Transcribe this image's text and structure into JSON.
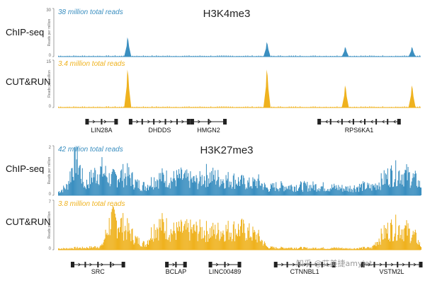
{
  "colors": {
    "chip": "#3b8fc0",
    "cutrun": "#efb21e",
    "axis": "#888888",
    "gene": "#222222"
  },
  "watermark": "知乎 @艾美捷amyjet",
  "chart_data": [
    {
      "type": "area",
      "title": "H3K4me3",
      "ylabel": "Reads per million",
      "tracks": [
        {
          "name": "ChIP-seq",
          "color": "#3b8fc0",
          "total_reads": "38 million total reads",
          "ylim": [
            0,
            30
          ],
          "ymax_label": "30",
          "ymin_label": "0",
          "x": [
            0,
            12,
            24,
            36,
            48,
            60,
            72,
            84,
            96,
            108,
            120,
            132,
            144,
            156,
            168,
            180,
            192,
            204,
            216,
            228,
            240,
            252,
            264,
            276,
            288,
            300,
            312,
            324,
            336,
            348,
            360,
            372,
            384,
            396,
            408,
            420,
            432,
            440,
            452,
            464,
            476,
            488,
            500
          ],
          "values": [
            0,
            1,
            1,
            1,
            1,
            1,
            1,
            1,
            12,
            1,
            1,
            1,
            1,
            1,
            1,
            1,
            1,
            1,
            1,
            1,
            1,
            1,
            1,
            1,
            9,
            1,
            1,
            1,
            1,
            1,
            1,
            1,
            1,
            6,
            1,
            1,
            1,
            1,
            1,
            1,
            1,
            6,
            1
          ]
        },
        {
          "name": "CUT&RUN",
          "color": "#efb21e",
          "total_reads": "3.4 million total reads",
          "ylim": [
            0,
            15
          ],
          "ymax_label": "15",
          "ymin_label": "0",
          "x": [
            0,
            12,
            24,
            36,
            48,
            60,
            72,
            84,
            96,
            108,
            120,
            132,
            144,
            156,
            168,
            180,
            192,
            204,
            216,
            228,
            240,
            252,
            264,
            276,
            288,
            300,
            312,
            324,
            336,
            348,
            360,
            372,
            384,
            396,
            408,
            420,
            432,
            440,
            452,
            464,
            476,
            488,
            500
          ],
          "values": [
            0,
            0,
            0,
            0,
            0,
            0,
            0,
            0,
            12,
            0,
            0,
            0,
            0,
            0,
            0,
            0,
            0,
            0,
            0,
            0,
            0,
            0,
            0,
            0,
            12,
            0,
            0,
            0,
            0,
            0,
            0,
            0,
            0,
            7,
            0,
            0,
            0,
            0,
            0,
            0,
            0,
            7,
            0
          ]
        }
      ],
      "genes": [
        {
          "label": "LIN28A",
          "start": 40,
          "end": 80,
          "strand": "right"
        },
        {
          "label": "DHDDS",
          "start": 100,
          "end": 180,
          "strand": "right"
        },
        {
          "label": "HMGN2",
          "start": 185,
          "end": 230,
          "strand": "right"
        },
        {
          "label": "RPS6KA1",
          "start": 360,
          "end": 470,
          "strand": "left"
        }
      ]
    },
    {
      "type": "area",
      "title": "H3K27me3",
      "ylabel": "Reads per million",
      "tracks": [
        {
          "name": "ChIP-seq",
          "color": "#3b8fc0",
          "total_reads": "42 million total reads",
          "ylim": [
            0,
            2
          ],
          "ymax_label": "2",
          "ymin_label": "0",
          "x": [
            0,
            12,
            24,
            36,
            48,
            60,
            72,
            84,
            96,
            108,
            120,
            132,
            144,
            156,
            168,
            180,
            192,
            204,
            216,
            228,
            240,
            252,
            264,
            276,
            288,
            300,
            312,
            324,
            336,
            348,
            360,
            372,
            384,
            396,
            408,
            420,
            432,
            444,
            456,
            468,
            480,
            492,
            500
          ],
          "values": [
            0.15,
            0.4,
            1.85,
            0.4,
            0.9,
            1.1,
            0.7,
            0.9,
            0.9,
            0.5,
            0.4,
            0.7,
            0.8,
            0.7,
            0.8,
            0.7,
            0.6,
            0.9,
            0.8,
            0.7,
            0.7,
            0.6,
            0.5,
            0.6,
            0.3,
            0.4,
            0.4,
            0.4,
            0.4,
            0.4,
            0.4,
            0.35,
            0.35,
            0.3,
            0.35,
            0.4,
            0.35,
            0.6,
            0.9,
            1.0,
            0.9,
            0.7,
            0.4
          ]
        },
        {
          "name": "CUT&RUN",
          "color": "#efb21e",
          "total_reads": "3.8 million total reads",
          "ylim": [
            0,
            7
          ],
          "ymax_label": "7",
          "ymin_label": "0",
          "x": [
            0,
            12,
            24,
            36,
            48,
            60,
            72,
            84,
            96,
            108,
            120,
            132,
            144,
            156,
            168,
            180,
            192,
            204,
            216,
            228,
            240,
            252,
            264,
            276,
            288,
            300,
            312,
            324,
            336,
            348,
            360,
            372,
            384,
            396,
            408,
            420,
            432,
            444,
            456,
            468,
            480,
            492,
            500
          ],
          "values": [
            0.2,
            0.2,
            0.3,
            0.3,
            0.4,
            0.6,
            4.5,
            4.2,
            3.0,
            1.5,
            0.8,
            3.5,
            3.8,
            2.8,
            3.0,
            3.0,
            3.0,
            2.9,
            2.8,
            3.0,
            3.1,
            3.2,
            2.6,
            2.0,
            0.4,
            0.3,
            0.3,
            0.3,
            0.3,
            0.2,
            0.3,
            0.2,
            0.3,
            0.2,
            0.2,
            0.3,
            0.3,
            2.0,
            3.2,
            3.5,
            3.0,
            2.0,
            0.5
          ]
        }
      ],
      "genes": [
        {
          "label": "SRC",
          "start": 20,
          "end": 90,
          "strand": "right"
        },
        {
          "label": "BCLAP",
          "start": 150,
          "end": 175,
          "strand": "right"
        },
        {
          "label": "LINC00489",
          "start": 210,
          "end": 250,
          "strand": "right"
        },
        {
          "label": "CTNNBL1",
          "start": 300,
          "end": 380,
          "strand": "right"
        },
        {
          "label": "VSTM2L",
          "start": 420,
          "end": 500,
          "strand": "right"
        }
      ]
    }
  ]
}
